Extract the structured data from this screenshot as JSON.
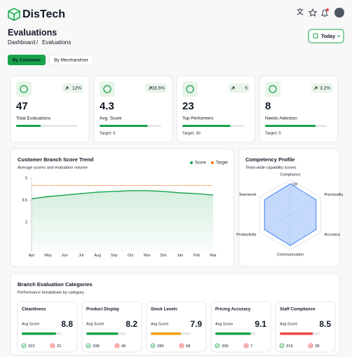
{
  "header": {
    "brand": "DisTech"
  },
  "page": {
    "title": "Evaluations",
    "breadcrumb": [
      "Dashboard",
      "Evaluations"
    ],
    "date_button": "Today"
  },
  "tabs": [
    "By Customer",
    "By Merchandiser"
  ],
  "kpis": [
    {
      "value": 47,
      "change": "12%",
      "label": "Total Evaluations",
      "progress": 40
    },
    {
      "value": 4.3,
      "change": "18.5%",
      "label": "Avg. Score",
      "progress": 78,
      "target": "Target: 5"
    },
    {
      "value": 23,
      "change": "5",
      "label": "Top Performers",
      "progress": 78,
      "target": "Target: 30"
    },
    {
      "value": 8,
      "change": "3.2%",
      "label": "Needs Attention",
      "progress": 82,
      "target": "Target: 0"
    }
  ],
  "chart_data": [
    {
      "type": "line",
      "title": "Customer Branch Score Trend",
      "subtitle": "Average scores and evaluation volume",
      "categories": [
        "Apr",
        "May",
        "Jun",
        "Jul",
        "Aug",
        "Sep",
        "Oct",
        "Nov",
        "Dec",
        "Jan",
        "Feb",
        "Mar"
      ],
      "series": [
        {
          "name": "Score",
          "color": "#16a34a",
          "values": [
            3.6,
            3.75,
            3.85,
            3.95,
            4.05,
            4.1,
            4.15,
            4.15,
            4.1,
            4.0,
            3.95,
            3.85
          ]
        },
        {
          "name": "Target",
          "color": "#f97316",
          "values": [
            4.5,
            4.5,
            4.5,
            4.5,
            4.5,
            4.5,
            4.5,
            4.5,
            4.5,
            4.5,
            4.5,
            4.5
          ]
        }
      ],
      "ylim": [
        0,
        5
      ],
      "yticks": [
        2,
        3.5,
        5
      ]
    },
    {
      "type": "radar",
      "title": "Competency Profile",
      "subtitle": "Team-wide capability scores",
      "categories": [
        "Compliance",
        "Punctuality",
        "Accuracy",
        "Communication",
        "Productivity",
        "Teamwork"
      ],
      "values": [
        88,
        85,
        85,
        88,
        85,
        85
      ],
      "color": "#3b82f6",
      "rlim": [
        0,
        100
      ],
      "rticks": [
        100
      ]
    }
  ],
  "categories_section": {
    "title": "Branch Evaluation Categories",
    "subtitle": "Performance breakdown by category",
    "score_label": "Avg Score",
    "items": [
      {
        "name": "Cleanliness",
        "score": 8.8,
        "progress": 86,
        "bar_color": "#16a34a",
        "passed": 322,
        "failed": 21
      },
      {
        "name": "Product Display",
        "score": 8.2,
        "progress": 80,
        "bar_color": "#16a34a",
        "passed": 298,
        "failed": 45
      },
      {
        "name": "Stock Levels",
        "score": 7.9,
        "progress": 76,
        "bar_color": "#f59e0b",
        "passed": 285,
        "failed": 58
      },
      {
        "name": "Pricing Accuracy",
        "score": 9.1,
        "progress": 89,
        "bar_color": "#16a34a",
        "passed": 336,
        "failed": 7
      },
      {
        "name": "Staff Compliance",
        "score": 8.5,
        "progress": 83,
        "bar_color": "#ef4444",
        "passed": 315,
        "failed": 28
      }
    ]
  }
}
